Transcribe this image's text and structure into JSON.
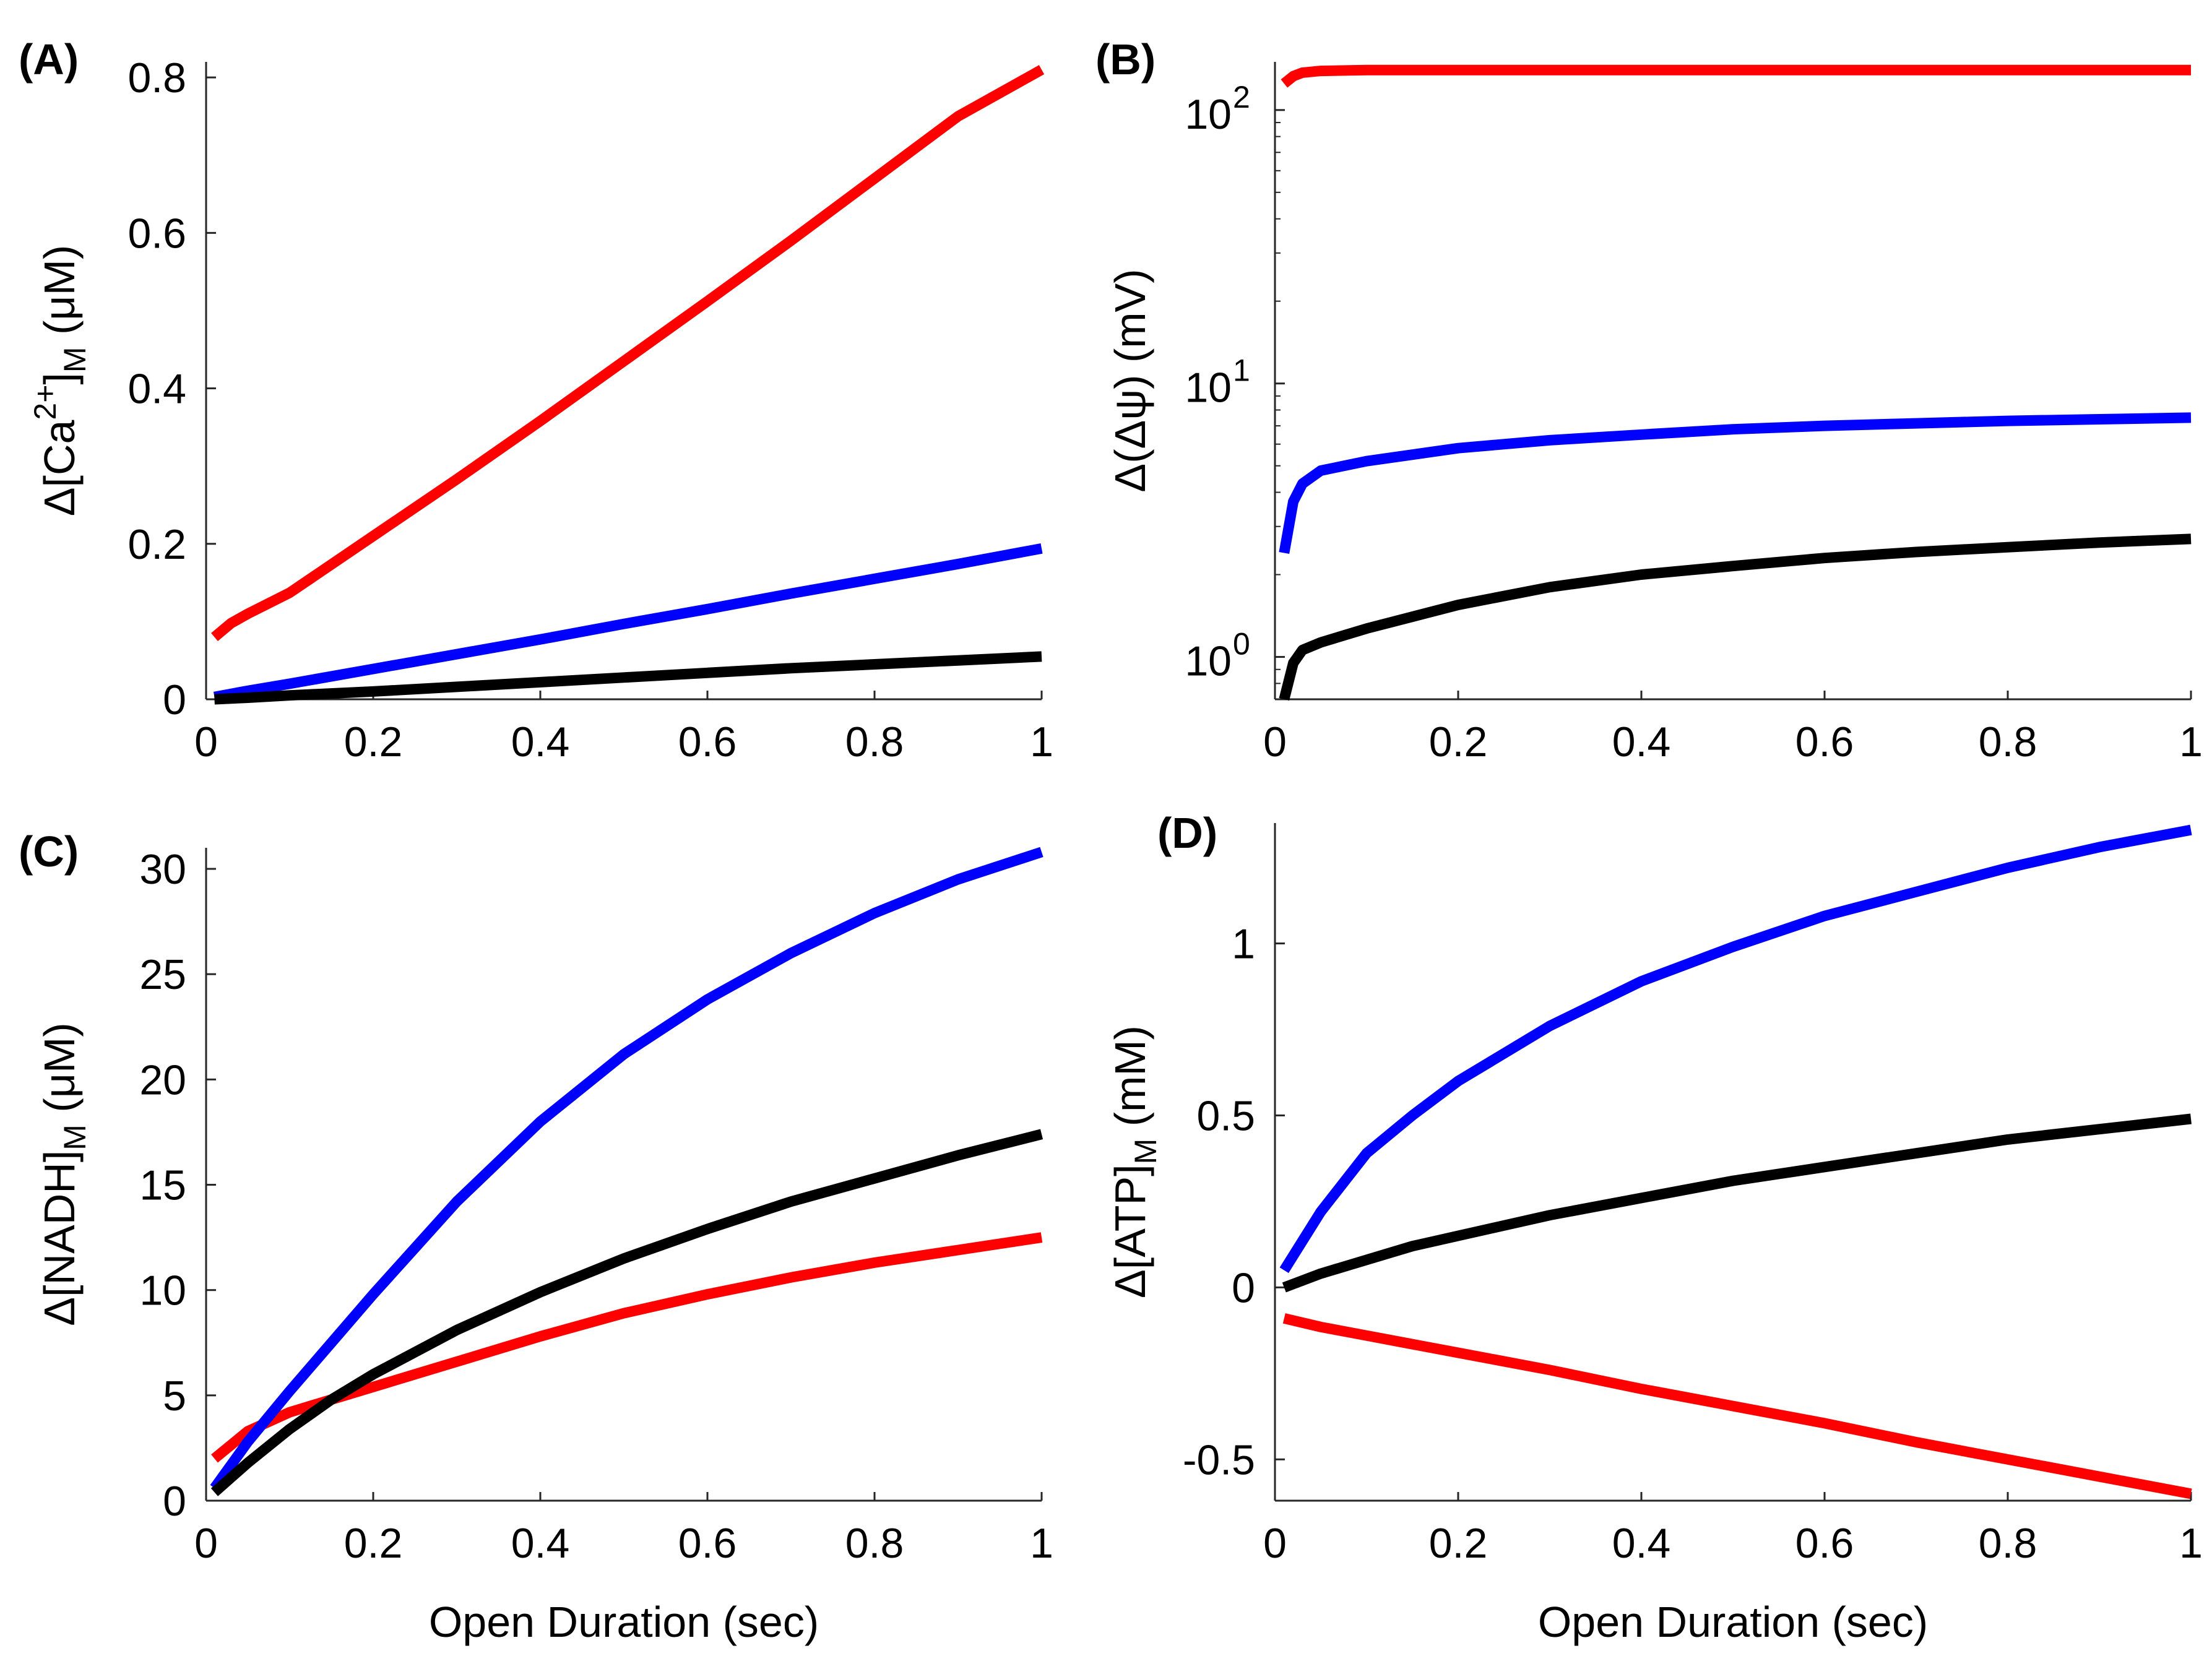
{
  "chart_data": [
    {
      "panel": "(A)",
      "type": "line",
      "ylabel": "Δ[Ca2+]M (μM)",
      "ylabel_parts": {
        "pre": "Δ[Ca",
        "sup": "2+",
        "mid": "]",
        "sub": "M",
        "post": " (μM)"
      },
      "xlabel": "",
      "xlim": [
        0,
        1
      ],
      "ylim": [
        0,
        0.82
      ],
      "yscale": "linear",
      "x_ticks": [
        0,
        0.2,
        0.4,
        0.6,
        0.8,
        1
      ],
      "x_tick_labels": [
        "0",
        "0.2",
        "0.4",
        "0.6",
        "0.8",
        "1"
      ],
      "y_ticks": [
        0,
        0.2,
        0.4,
        0.6,
        0.8
      ],
      "y_tick_labels": [
        "0",
        "0.2",
        "0.4",
        "0.6",
        "0.8"
      ],
      "x": [
        0.01,
        0.03,
        0.05,
        0.1,
        0.2,
        0.3,
        0.4,
        0.5,
        0.6,
        0.7,
        0.8,
        0.9,
        1.0
      ],
      "series": [
        {
          "name": "red",
          "color": "#ff0000",
          "values": [
            0.08,
            0.098,
            0.11,
            0.137,
            0.21,
            0.283,
            0.358,
            0.435,
            0.512,
            0.59,
            0.67,
            0.75,
            0.81
          ]
        },
        {
          "name": "blue",
          "color": "#0000ff",
          "values": [
            0.003,
            0.007,
            0.011,
            0.02,
            0.039,
            0.058,
            0.077,
            0.097,
            0.116,
            0.136,
            0.155,
            0.174,
            0.194
          ]
        },
        {
          "name": "black",
          "color": "#000000",
          "values": [
            0.0,
            0.001,
            0.002,
            0.005,
            0.01,
            0.016,
            0.022,
            0.028,
            0.034,
            0.04,
            0.045,
            0.05,
            0.055
          ]
        }
      ]
    },
    {
      "panel": "(B)",
      "type": "line",
      "ylabel": "Δ(Δψ) (mV)",
      "xlabel": "",
      "xlim": [
        0,
        1
      ],
      "ylim": [
        0.7,
        150
      ],
      "yscale": "log",
      "x_ticks": [
        0,
        0.2,
        0.4,
        0.6,
        0.8,
        1
      ],
      "x_tick_labels": [
        "0",
        "0.2",
        "0.4",
        "0.6",
        "0.8",
        "1"
      ],
      "y_ticks": [
        1,
        10,
        100
      ],
      "y_tick_labels": [
        {
          "base": "10",
          "exp": "0"
        },
        {
          "base": "10",
          "exp": "1"
        },
        {
          "base": "10",
          "exp": "2"
        }
      ],
      "x": [
        0.01,
        0.02,
        0.03,
        0.05,
        0.1,
        0.2,
        0.3,
        0.4,
        0.5,
        0.6,
        0.7,
        0.8,
        0.9,
        1.0
      ],
      "series": [
        {
          "name": "red",
          "color": "#ff0000",
          "values": [
            125,
            133,
            137,
            139,
            140,
            140,
            140,
            140,
            140,
            140,
            140,
            140,
            140,
            140
          ]
        },
        {
          "name": "blue",
          "color": "#0000ff",
          "values": [
            2.4,
            3.7,
            4.3,
            4.8,
            5.2,
            5.8,
            6.2,
            6.5,
            6.8,
            7.0,
            7.15,
            7.3,
            7.4,
            7.5
          ]
        },
        {
          "name": "black",
          "color": "#000000",
          "values": [
            0.7,
            0.95,
            1.06,
            1.13,
            1.27,
            1.55,
            1.8,
            2.0,
            2.15,
            2.3,
            2.42,
            2.52,
            2.62,
            2.7
          ]
        }
      ]
    },
    {
      "panel": "(C)",
      "type": "line",
      "ylabel": "Δ[NADH]M (μM)",
      "ylabel_parts": {
        "pre": "Δ[NADH]",
        "sub": "M",
        "post": " (μM)"
      },
      "xlabel": "Open Duration (sec)",
      "xlim": [
        0,
        1
      ],
      "ylim": [
        0,
        31
      ],
      "yscale": "linear",
      "x_ticks": [
        0,
        0.2,
        0.4,
        0.6,
        0.8,
        1
      ],
      "x_tick_labels": [
        "0",
        "0.2",
        "0.4",
        "0.6",
        "0.8",
        "1"
      ],
      "y_ticks": [
        0,
        5,
        10,
        15,
        20,
        25,
        30
      ],
      "y_tick_labels": [
        "0",
        "5",
        "10",
        "15",
        "20",
        "25",
        "30"
      ],
      "x": [
        0.01,
        0.05,
        0.1,
        0.15,
        0.2,
        0.3,
        0.4,
        0.5,
        0.6,
        0.7,
        0.8,
        0.9,
        1.0
      ],
      "series": [
        {
          "name": "red",
          "color": "#ff0000",
          "values": [
            2.0,
            3.3,
            4.2,
            4.8,
            5.4,
            6.6,
            7.8,
            8.9,
            9.8,
            10.6,
            11.3,
            11.9,
            12.5
          ]
        },
        {
          "name": "blue",
          "color": "#0000ff",
          "values": [
            0.6,
            2.8,
            5.2,
            7.5,
            9.8,
            14.2,
            18.0,
            21.2,
            23.8,
            26.0,
            27.9,
            29.5,
            30.8
          ]
        },
        {
          "name": "black",
          "color": "#000000",
          "values": [
            0.4,
            1.8,
            3.4,
            4.8,
            6.0,
            8.1,
            9.9,
            11.5,
            12.9,
            14.2,
            15.3,
            16.4,
            17.4
          ]
        }
      ]
    },
    {
      "panel": "(D)",
      "type": "line",
      "ylabel": "Δ[ATP]M (mM)",
      "ylabel_parts": {
        "pre": "Δ[ATP]",
        "sub": "M",
        "post": " (mM)"
      },
      "xlabel": "Open Duration (sec)",
      "xlim": [
        0,
        1
      ],
      "ylim": [
        -0.62,
        1.35
      ],
      "yscale": "linear",
      "x_ticks": [
        0,
        0.2,
        0.4,
        0.6,
        0.8,
        1
      ],
      "x_tick_labels": [
        "0",
        "0.2",
        "0.4",
        "0.6",
        "0.8",
        "1"
      ],
      "y_ticks": [
        -0.5,
        0,
        0.5,
        1
      ],
      "y_tick_labels": [
        "-0.5",
        "0",
        "0.5",
        "1"
      ],
      "x": [
        0.01,
        0.05,
        0.1,
        0.15,
        0.2,
        0.3,
        0.4,
        0.5,
        0.6,
        0.7,
        0.8,
        0.9,
        1.0
      ],
      "series": [
        {
          "name": "red",
          "color": "#ff0000",
          "values": [
            -0.09,
            -0.115,
            -0.14,
            -0.165,
            -0.19,
            -0.24,
            -0.295,
            -0.345,
            -0.395,
            -0.45,
            -0.5,
            -0.55,
            -0.6
          ]
        },
        {
          "name": "blue",
          "color": "#0000ff",
          "values": [
            0.05,
            0.22,
            0.39,
            0.5,
            0.6,
            0.76,
            0.89,
            0.99,
            1.08,
            1.15,
            1.22,
            1.28,
            1.33
          ]
        },
        {
          "name": "black",
          "color": "#000000",
          "values": [
            0.0,
            0.04,
            0.08,
            0.12,
            0.15,
            0.21,
            0.26,
            0.31,
            0.35,
            0.39,
            0.43,
            0.46,
            0.49
          ]
        }
      ]
    }
  ]
}
